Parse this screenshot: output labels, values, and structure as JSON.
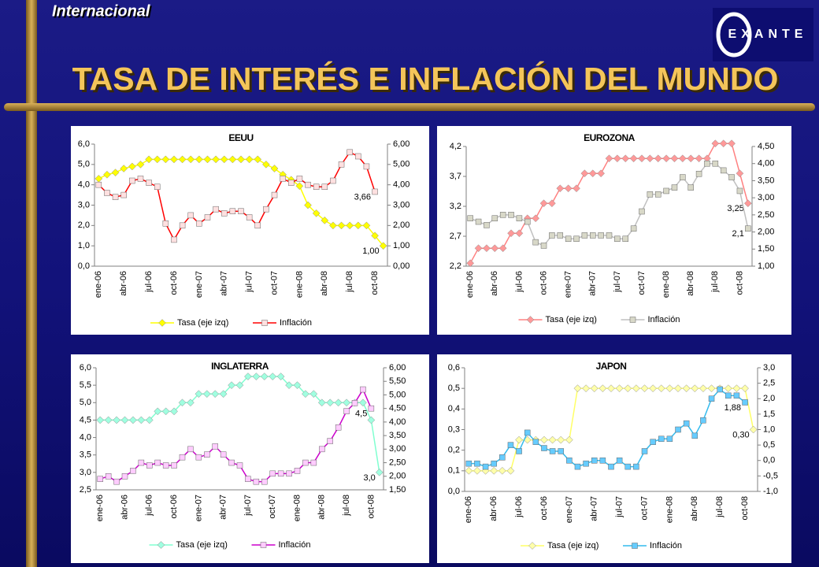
{
  "header": {
    "section": "Internacional",
    "title": "TASA DE INTERÉS E INFLACIÓN DEL MUNDO",
    "logo": "EXANTE"
  },
  "chart_data": [
    {
      "type": "line",
      "title": "EEUU",
      "categories": [
        "ene-06",
        null,
        null,
        "abr-06",
        null,
        null,
        "jul-06",
        null,
        null,
        "oct-06",
        null,
        null,
        "ene-07",
        null,
        null,
        "abr-07",
        null,
        null,
        "jul-07",
        null,
        null,
        "oct-07",
        null,
        null,
        "ene-08",
        null,
        null,
        "abr-08",
        null,
        null,
        "jul-08",
        null,
        null,
        "oct-08",
        null
      ],
      "ylim": [
        0,
        6
      ],
      "yticks": [
        {
          "value": 0,
          "label": "0,0"
        },
        {
          "value": 1,
          "label": "1,0"
        },
        {
          "value": 2,
          "label": "2,0"
        },
        {
          "value": 3,
          "label": "3,0"
        },
        {
          "value": 4,
          "label": "4,0"
        },
        {
          "value": 5,
          "label": "5,0"
        },
        {
          "value": 6,
          "label": "6,0"
        }
      ],
      "y2lim": [
        0,
        6
      ],
      "y2ticks": [
        {
          "value": 0,
          "label": "0,00"
        },
        {
          "value": 1,
          "label": "1,00"
        },
        {
          "value": 2,
          "label": "2,00"
        },
        {
          "value": 3,
          "label": "3,00"
        },
        {
          "value": 4,
          "label": "4,00"
        },
        {
          "value": 5,
          "label": "5,00"
        },
        {
          "value": 6,
          "label": "6,00"
        }
      ],
      "series": [
        {
          "name": "Tasa (eje izq)",
          "color": "#ffff00",
          "marker": "diamond",
          "marker_color": "#ffff00",
          "values": [
            4.3,
            4.5,
            4.6,
            4.8,
            4.9,
            5.0,
            5.25,
            5.25,
            5.25,
            5.25,
            5.25,
            5.25,
            5.25,
            5.25,
            5.25,
            5.25,
            5.25,
            5.25,
            5.25,
            5.25,
            5.0,
            4.8,
            4.5,
            4.25,
            3.94,
            3.0,
            2.6,
            2.25,
            2.0,
            2.0,
            2.0,
            2.0,
            2.0,
            1.5,
            1.0
          ],
          "value_labels": [
            null,
            null,
            null,
            null,
            null,
            null,
            null,
            null,
            null,
            null,
            null,
            null,
            null,
            null,
            null,
            null,
            null,
            null,
            null,
            null,
            null,
            null,
            null,
            null,
            null,
            null,
            null,
            null,
            null,
            null,
            null,
            null,
            null,
            null,
            "1,00"
          ]
        },
        {
          "name": "Inflación",
          "axis": "y2",
          "color": "#ff0000",
          "marker": "square",
          "marker_color": "#ffe0e0",
          "values": [
            4.0,
            3.6,
            3.4,
            3.5,
            4.2,
            4.3,
            4.1,
            3.9,
            2.1,
            1.3,
            2.0,
            2.5,
            2.1,
            2.4,
            2.8,
            2.6,
            2.7,
            2.7,
            2.4,
            2.0,
            2.8,
            3.5,
            4.3,
            4.1,
            4.3,
            4.0,
            3.9,
            3.9,
            4.2,
            5.0,
            5.6,
            5.4,
            4.9,
            3.66,
            null
          ],
          "value_labels": [
            null,
            null,
            null,
            null,
            null,
            null,
            null,
            null,
            null,
            null,
            null,
            null,
            null,
            null,
            null,
            null,
            null,
            null,
            null,
            null,
            null,
            null,
            null,
            null,
            null,
            null,
            null,
            null,
            null,
            null,
            null,
            null,
            null,
            "3,66",
            null
          ]
        }
      ]
    },
    {
      "type": "line",
      "title": "EUROZONA",
      "categories": [
        "ene-06",
        null,
        null,
        "abr-06",
        null,
        null,
        "jul-06",
        null,
        null,
        "oct-06",
        null,
        null,
        "ene-07",
        null,
        null,
        "abr-07",
        null,
        null,
        "jul-07",
        null,
        null,
        "oct-07",
        null,
        null,
        "ene-08",
        null,
        null,
        "abr-08",
        null,
        null,
        "jul-08",
        null,
        null,
        "oct-08",
        null
      ],
      "ylim": [
        2.2,
        4.2
      ],
      "yticks": [
        {
          "value": 2.2,
          "label": "2,2"
        },
        {
          "value": 2.7,
          "label": "2,7"
        },
        {
          "value": 3.2,
          "label": "3,2"
        },
        {
          "value": 3.7,
          "label": "3,7"
        },
        {
          "value": 4.2,
          "label": "4,2"
        }
      ],
      "y2lim": [
        1,
        4.5
      ],
      "y2ticks": [
        {
          "value": 1,
          "label": "1,00"
        },
        {
          "value": 1.5,
          "label": "1,50"
        },
        {
          "value": 2,
          "label": "2,00"
        },
        {
          "value": 2.5,
          "label": "2,50"
        },
        {
          "value": 3,
          "label": "3,00"
        },
        {
          "value": 3.5,
          "label": "3,50"
        },
        {
          "value": 4,
          "label": "4,00"
        },
        {
          "value": 4.5,
          "label": "4,50"
        }
      ],
      "series": [
        {
          "name": "Tasa (eje izq)",
          "color": "#ff8080",
          "marker": "diamond",
          "marker_color": "#ff9999",
          "values": [
            2.25,
            2.5,
            2.5,
            2.5,
            2.5,
            2.75,
            2.75,
            3.0,
            3.0,
            3.25,
            3.25,
            3.5,
            3.5,
            3.5,
            3.75,
            3.75,
            3.75,
            4.0,
            4.0,
            4.0,
            4.0,
            4.0,
            4.0,
            4.0,
            4.0,
            4.0,
            4.0,
            4.0,
            4.0,
            4.0,
            4.25,
            4.25,
            4.25,
            3.75,
            3.25
          ],
          "value_labels": [
            null,
            null,
            null,
            null,
            null,
            null,
            null,
            null,
            null,
            null,
            null,
            null,
            null,
            null,
            null,
            null,
            null,
            null,
            null,
            null,
            null,
            null,
            null,
            null,
            null,
            null,
            null,
            null,
            null,
            null,
            null,
            null,
            null,
            null,
            "3,25"
          ]
        },
        {
          "name": "Inflación",
          "axis": "y2",
          "color": "#c0c0c0",
          "marker": "square",
          "marker_color": "#d8d8c8",
          "values": [
            2.4,
            2.3,
            2.2,
            2.4,
            2.5,
            2.5,
            2.4,
            2.3,
            1.7,
            1.6,
            1.9,
            1.9,
            1.8,
            1.8,
            1.9,
            1.9,
            1.9,
            1.9,
            1.8,
            1.8,
            2.1,
            2.6,
            3.1,
            3.1,
            3.2,
            3.3,
            3.6,
            3.3,
            3.7,
            4.0,
            4.0,
            3.8,
            3.6,
            3.2,
            2.1
          ],
          "value_labels": [
            null,
            null,
            null,
            null,
            null,
            null,
            null,
            null,
            null,
            null,
            null,
            null,
            null,
            null,
            null,
            null,
            null,
            null,
            null,
            null,
            null,
            null,
            null,
            null,
            null,
            null,
            null,
            null,
            null,
            null,
            null,
            null,
            null,
            null,
            "2,1"
          ]
        }
      ]
    },
    {
      "type": "line",
      "title": "INGLATERRA",
      "categories": [
        "ene-06",
        null,
        null,
        "abr-06",
        null,
        null,
        "jul-06",
        null,
        null,
        "oct-06",
        null,
        null,
        "ene-07",
        null,
        null,
        "abr-07",
        null,
        null,
        "jul-07",
        null,
        null,
        "oct-07",
        null,
        null,
        "ene-08",
        null,
        null,
        "abr-08",
        null,
        null,
        "jul-08",
        null,
        null,
        "oct-08",
        null
      ],
      "ylim": [
        2.5,
        6
      ],
      "yticks": [
        {
          "value": 2.5,
          "label": "2,5"
        },
        {
          "value": 3,
          "label": "3,0"
        },
        {
          "value": 3.5,
          "label": "3,5"
        },
        {
          "value": 4,
          "label": "4,0"
        },
        {
          "value": 4.5,
          "label": "4,5"
        },
        {
          "value": 5,
          "label": "5,0"
        },
        {
          "value": 5.5,
          "label": "5,5"
        },
        {
          "value": 6,
          "label": "6,0"
        }
      ],
      "y2lim": [
        1.5,
        6
      ],
      "y2ticks": [
        {
          "value": 1.5,
          "label": "1,50"
        },
        {
          "value": 2,
          "label": "2,00"
        },
        {
          "value": 2.5,
          "label": "2,50"
        },
        {
          "value": 3,
          "label": "3,00"
        },
        {
          "value": 3.5,
          "label": "3,50"
        },
        {
          "value": 4,
          "label": "4,00"
        },
        {
          "value": 4.5,
          "label": "4,50"
        },
        {
          "value": 5,
          "label": "5,00"
        },
        {
          "value": 5.5,
          "label": "5,50"
        },
        {
          "value": 6,
          "label": "6,00"
        }
      ],
      "series": [
        {
          "name": "Tasa (eje izq)",
          "color": "#80ffd0",
          "marker": "diamond",
          "marker_color": "#a0ffe0",
          "values": [
            4.5,
            4.5,
            4.5,
            4.5,
            4.5,
            4.5,
            4.5,
            4.75,
            4.75,
            4.75,
            5.0,
            5.0,
            5.25,
            5.25,
            5.25,
            5.25,
            5.5,
            5.5,
            5.75,
            5.75,
            5.75,
            5.75,
            5.75,
            5.5,
            5.5,
            5.25,
            5.25,
            5.0,
            5.0,
            5.0,
            5.0,
            5.0,
            5.0,
            4.5,
            3.0
          ],
          "value_labels": [
            null,
            null,
            null,
            null,
            null,
            null,
            null,
            null,
            null,
            null,
            null,
            null,
            null,
            null,
            null,
            null,
            null,
            null,
            null,
            null,
            null,
            null,
            null,
            null,
            null,
            null,
            null,
            null,
            null,
            null,
            null,
            null,
            null,
            null,
            "3,0"
          ]
        },
        {
          "name": "Inflación",
          "axis": "y2",
          "color": "#cc00cc",
          "marker": "square",
          "marker_color": "#ffccff",
          "values": [
            1.9,
            2.0,
            1.8,
            2.0,
            2.2,
            2.5,
            2.4,
            2.5,
            2.4,
            2.4,
            2.7,
            3.0,
            2.7,
            2.8,
            3.1,
            2.8,
            2.5,
            2.4,
            1.9,
            1.8,
            1.8,
            2.1,
            2.1,
            2.1,
            2.2,
            2.5,
            2.5,
            3.0,
            3.3,
            3.8,
            4.4,
            4.7,
            5.2,
            4.5,
            null
          ],
          "value_labels": [
            null,
            null,
            null,
            null,
            null,
            null,
            null,
            null,
            null,
            null,
            null,
            null,
            null,
            null,
            null,
            null,
            null,
            null,
            null,
            null,
            null,
            null,
            null,
            null,
            null,
            null,
            null,
            null,
            null,
            null,
            null,
            null,
            null,
            "4,5",
            null
          ]
        }
      ]
    },
    {
      "type": "line",
      "title": "JAPON",
      "categories": [
        "ene-06",
        null,
        null,
        "abr-06",
        null,
        null,
        "jul-06",
        null,
        null,
        "oct-06",
        null,
        null,
        "ene-07",
        null,
        null,
        "abr-07",
        null,
        null,
        "jul-07",
        null,
        null,
        "oct-07",
        null,
        null,
        "ene-08",
        null,
        null,
        "abr-08",
        null,
        null,
        "jul-08",
        null,
        null,
        "oct-08",
        null
      ],
      "ylim": [
        0,
        0.6
      ],
      "yticks": [
        {
          "value": 0,
          "label": "0,0"
        },
        {
          "value": 0.1,
          "label": "0,1"
        },
        {
          "value": 0.2,
          "label": "0,2"
        },
        {
          "value": 0.3,
          "label": "0,3"
        },
        {
          "value": 0.4,
          "label": "0,4"
        },
        {
          "value": 0.5,
          "label": "0,5"
        },
        {
          "value": 0.6,
          "label": "0,6"
        }
      ],
      "y2lim": [
        -1,
        3
      ],
      "y2ticks": [
        {
          "value": -1,
          "label": "-1,0"
        },
        {
          "value": -0.5,
          "label": "-0,5"
        },
        {
          "value": 0,
          "label": "0,0"
        },
        {
          "value": 0.5,
          "label": "0,5"
        },
        {
          "value": 1,
          "label": "1,0"
        },
        {
          "value": 1.5,
          "label": "1,5"
        },
        {
          "value": 2,
          "label": "2,0"
        },
        {
          "value": 2.5,
          "label": "2,5"
        },
        {
          "value": 3,
          "label": "3,0"
        }
      ],
      "series": [
        {
          "name": "Tasa (eje izq)",
          "color": "#ffff66",
          "marker": "diamond",
          "marker_color": "#ffffaa",
          "values": [
            0.1,
            0.1,
            0.1,
            0.1,
            0.1,
            0.1,
            0.25,
            0.25,
            0.25,
            0.25,
            0.25,
            0.25,
            0.25,
            0.5,
            0.5,
            0.5,
            0.5,
            0.5,
            0.5,
            0.5,
            0.5,
            0.5,
            0.5,
            0.5,
            0.5,
            0.5,
            0.5,
            0.5,
            0.5,
            0.5,
            0.5,
            0.5,
            0.5,
            0.5,
            0.3
          ],
          "value_labels": [
            null,
            null,
            null,
            null,
            null,
            null,
            null,
            null,
            null,
            null,
            null,
            null,
            null,
            null,
            null,
            null,
            null,
            null,
            null,
            null,
            null,
            null,
            null,
            null,
            null,
            null,
            null,
            null,
            null,
            null,
            null,
            null,
            null,
            null,
            "0,30"
          ]
        },
        {
          "name": "Inflación",
          "axis": "y2",
          "color": "#33bbee",
          "marker": "square",
          "marker_color": "#66ccff",
          "values": [
            -0.1,
            -0.1,
            -0.2,
            -0.1,
            0.1,
            0.5,
            0.3,
            0.9,
            0.6,
            0.4,
            0.3,
            0.3,
            0.0,
            -0.2,
            -0.1,
            0.0,
            0.0,
            -0.2,
            0.0,
            -0.2,
            -0.2,
            0.3,
            0.6,
            0.7,
            0.7,
            1.0,
            1.2,
            0.8,
            1.3,
            2.0,
            2.3,
            2.1,
            2.1,
            1.88,
            null
          ],
          "value_labels": [
            null,
            null,
            null,
            null,
            null,
            null,
            null,
            null,
            null,
            null,
            null,
            null,
            null,
            null,
            null,
            null,
            null,
            null,
            null,
            null,
            null,
            null,
            null,
            null,
            null,
            null,
            null,
            null,
            null,
            null,
            null,
            null,
            null,
            "1,88",
            null
          ]
        }
      ]
    }
  ]
}
